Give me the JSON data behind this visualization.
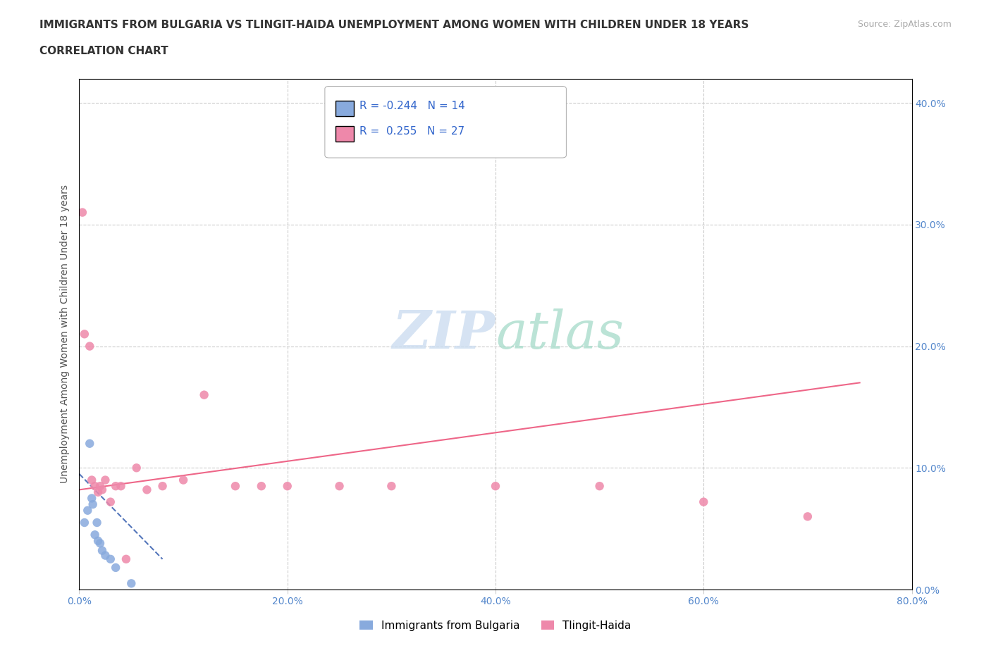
{
  "title_line1": "IMMIGRANTS FROM BULGARIA VS TLINGIT-HAIDA UNEMPLOYMENT AMONG WOMEN WITH CHILDREN UNDER 18 YEARS",
  "title_line2": "CORRELATION CHART",
  "source": "Source: ZipAtlas.com",
  "ylabel": "Unemployment Among Women with Children Under 18 years",
  "xlim": [
    0.0,
    0.8
  ],
  "ylim": [
    0.0,
    0.42
  ],
  "xticks": [
    0.0,
    0.2,
    0.4,
    0.6,
    0.8
  ],
  "yticks": [
    0.0,
    0.1,
    0.2,
    0.3,
    0.4
  ],
  "ytick_labels": [
    "0.0%",
    "10.0%",
    "20.0%",
    "30.0%",
    "40.0%"
  ],
  "xtick_labels": [
    "0.0%",
    "20.0%",
    "40.0%",
    "60.0%",
    "80.0%"
  ],
  "bg_color": "#ffffff",
  "grid_color": "#cccccc",
  "legend_R1": "R = -0.244",
  "legend_N1": "N = 14",
  "legend_R2": "R =  0.255",
  "legend_N2": "N = 27",
  "blue_dot_color": "#88aadd",
  "pink_dot_color": "#ee88aa",
  "blue_line_color": "#5577bb",
  "pink_line_color": "#ee6688",
  "blue_pts_x": [
    0.005,
    0.008,
    0.01,
    0.012,
    0.013,
    0.015,
    0.017,
    0.018,
    0.02,
    0.022,
    0.025,
    0.03,
    0.035,
    0.05
  ],
  "blue_pts_y": [
    0.055,
    0.065,
    0.12,
    0.075,
    0.07,
    0.045,
    0.055,
    0.04,
    0.038,
    0.032,
    0.028,
    0.025,
    0.018,
    0.005
  ],
  "pink_pts_x": [
    0.003,
    0.005,
    0.01,
    0.012,
    0.015,
    0.018,
    0.02,
    0.022,
    0.025,
    0.03,
    0.035,
    0.04,
    0.045,
    0.055,
    0.065,
    0.08,
    0.1,
    0.12,
    0.15,
    0.175,
    0.2,
    0.25,
    0.3,
    0.4,
    0.5,
    0.6,
    0.7
  ],
  "pink_pts_y": [
    0.31,
    0.21,
    0.2,
    0.09,
    0.085,
    0.08,
    0.085,
    0.082,
    0.09,
    0.072,
    0.085,
    0.085,
    0.025,
    0.1,
    0.082,
    0.085,
    0.09,
    0.16,
    0.085,
    0.085,
    0.085,
    0.085,
    0.085,
    0.085,
    0.085,
    0.072,
    0.06
  ],
  "blue_trend_x": [
    0.0,
    0.08
  ],
  "blue_trend_y": [
    0.095,
    0.025
  ],
  "pink_trend_x": [
    0.0,
    0.75
  ],
  "pink_trend_y": [
    0.082,
    0.17
  ],
  "legend_label_blue": "Immigrants from Bulgaria",
  "legend_label_pink": "Tlingit-Haida"
}
